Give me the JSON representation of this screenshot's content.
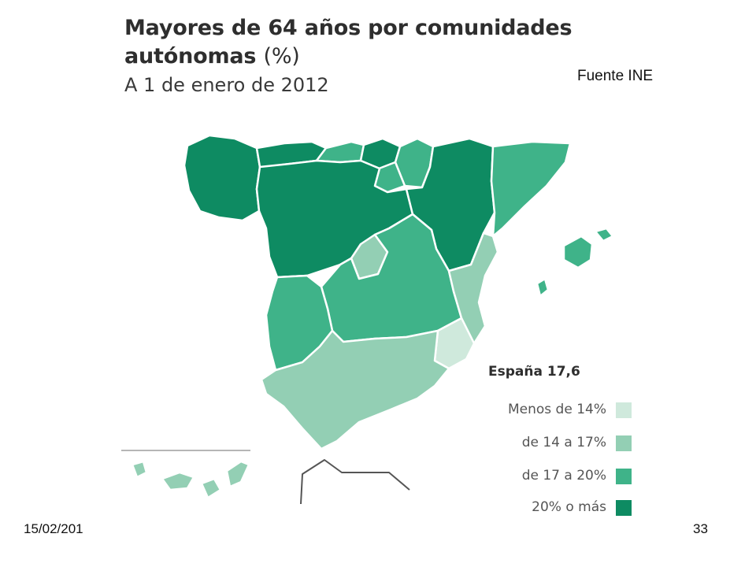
{
  "slide": {
    "date": "15/02/201",
    "page_number": "33",
    "source": "Fuente INE"
  },
  "map": {
    "title_main": "Mayores de 64 años por comunidades autónomas",
    "title_unit": "(%)",
    "subtitle": "A 1 de enero de 2012",
    "total": "España 17,6",
    "legend": [
      {
        "label": "Menos de 14%",
        "color": "#cfe9dc"
      },
      {
        "label": "de 14 a 17%",
        "color": "#93cfb4"
      },
      {
        "label": "de 17 a 20%",
        "color": "#3fb389"
      },
      {
        "label": "20% o más",
        "color": "#0e8b62"
      }
    ]
  }
}
